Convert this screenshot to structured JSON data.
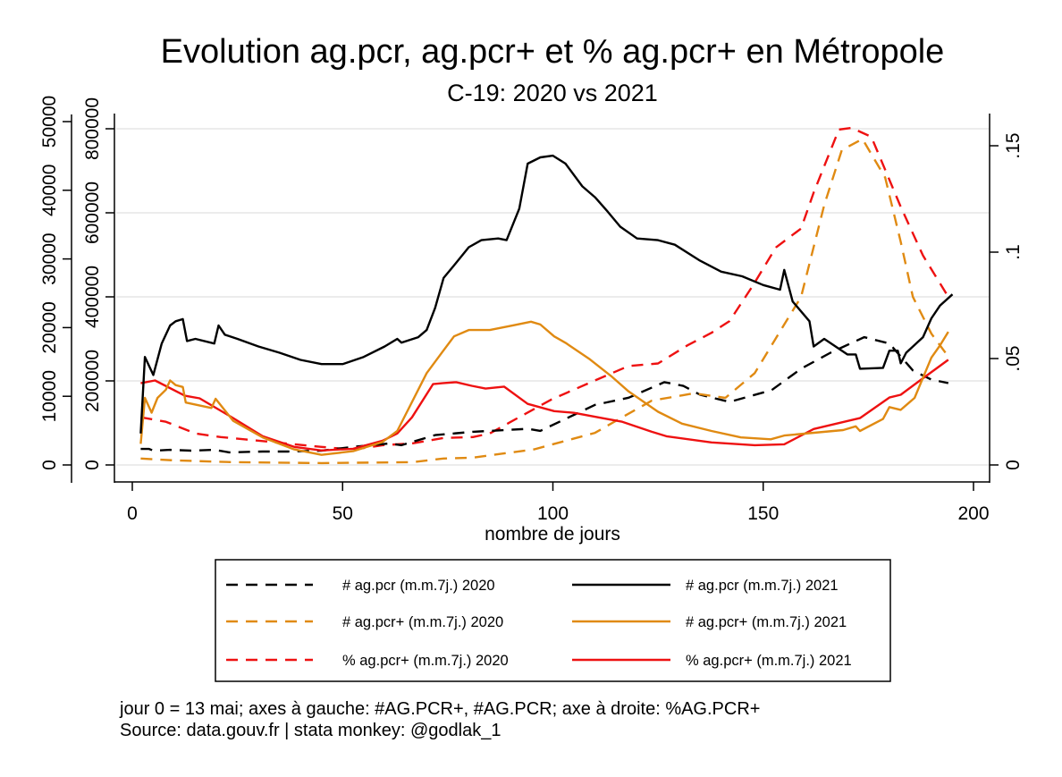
{
  "chart_data": {
    "type": "line",
    "title": "Evolution ag.pcr, ag.pcr+ et % ag.pcr+ en Métropole",
    "subtitle": "C-19: 2020 vs 2021",
    "xlabel": "nombre de jours",
    "xlim": [
      0,
      200
    ],
    "xticks": [
      "0",
      "50",
      "100",
      "150",
      "200"
    ],
    "axes": {
      "left_outer": {
        "label_for": "ag.pcr+",
        "range": [
          0,
          50000
        ],
        "ticks": [
          "0",
          "10000",
          "20000",
          "30000",
          "40000",
          "50000"
        ]
      },
      "left_inner": {
        "label_for": "ag.pcr",
        "range": [
          0,
          800000
        ],
        "ticks": [
          "0",
          "200000",
          "400000",
          "600000",
          "800000"
        ]
      },
      "right": {
        "label_for": "% ag.pcr+",
        "range": [
          0,
          0.15
        ],
        "ticks": [
          "0",
          ".05",
          ".1",
          ".15"
        ]
      }
    },
    "grid": true,
    "legend_position": "bottom",
    "series": [
      {
        "name": "# ag.pcr (m.m.7j.) 2020",
        "axis": "left_inner",
        "color": "#000000",
        "dash": true,
        "points": [
          [
            2,
            38000
          ],
          [
            4,
            38000
          ],
          [
            5,
            34000
          ],
          [
            9,
            36000
          ],
          [
            14,
            34000
          ],
          [
            19.5,
            36000
          ],
          [
            23,
            30000
          ],
          [
            31,
            32000
          ],
          [
            37,
            32000
          ],
          [
            45,
            34000
          ],
          [
            52.5,
            43000
          ],
          [
            61,
            51000
          ],
          [
            64,
            47000
          ],
          [
            72,
            71000
          ],
          [
            81,
            79000
          ],
          [
            85,
            81000
          ],
          [
            94,
            86000
          ],
          [
            97,
            81000
          ],
          [
            110,
            143000
          ],
          [
            118,
            160000
          ],
          [
            126.5,
            197000
          ],
          [
            131,
            188000
          ],
          [
            135,
            167000
          ],
          [
            142,
            150000
          ],
          [
            152,
            178000
          ],
          [
            159,
            229000
          ],
          [
            166,
            267000
          ],
          [
            174,
            304000
          ],
          [
            180,
            289000
          ],
          [
            185.6,
            225000
          ],
          [
            190,
            203000
          ],
          [
            194,
            195000
          ]
        ]
      },
      {
        "name": "# ag.pcr (m.m.7j.) 2021",
        "axis": "left_inner",
        "color": "#000000",
        "dash": false,
        "points": [
          [
            2,
            75000
          ],
          [
            3,
            257000
          ],
          [
            5,
            214000
          ],
          [
            7,
            289000
          ],
          [
            9,
            332000
          ],
          [
            10.3,
            342000
          ],
          [
            12,
            347000
          ],
          [
            13,
            295000
          ],
          [
            15,
            300000
          ],
          [
            19.5,
            289000
          ],
          [
            20.5,
            332000
          ],
          [
            22,
            310000
          ],
          [
            25,
            300000
          ],
          [
            30,
            282000
          ],
          [
            35,
            267000
          ],
          [
            40,
            250000
          ],
          [
            45,
            240000
          ],
          [
            50,
            240000
          ],
          [
            55,
            257000
          ],
          [
            60,
            282000
          ],
          [
            63,
            300000
          ],
          [
            64,
            291000
          ],
          [
            68,
            304000
          ],
          [
            70,
            321000
          ],
          [
            72,
            374000
          ],
          [
            74,
            445000
          ],
          [
            77,
            481000
          ],
          [
            80,
            518000
          ],
          [
            83,
            535000
          ],
          [
            87,
            539000
          ],
          [
            89,
            535000
          ],
          [
            92,
            610000
          ],
          [
            94,
            717000
          ],
          [
            97,
            732000
          ],
          [
            100,
            736000
          ],
          [
            103,
            717000
          ],
          [
            107,
            663000
          ],
          [
            110,
            637000
          ],
          [
            113,
            603000
          ],
          [
            116,
            567000
          ],
          [
            120,
            539000
          ],
          [
            125,
            535000
          ],
          [
            129,
            524000
          ],
          [
            135,
            486000
          ],
          [
            140,
            460000
          ],
          [
            145,
            449000
          ],
          [
            150,
            428000
          ],
          [
            154,
            417000
          ],
          [
            155,
            464000
          ],
          [
            157,
            389000
          ],
          [
            161,
            342000
          ],
          [
            162,
            282000
          ],
          [
            164.5,
            300000
          ],
          [
            170,
            263000
          ],
          [
            172,
            263000
          ],
          [
            173,
            229000
          ],
          [
            178.5,
            231000
          ],
          [
            180,
            272000
          ],
          [
            182,
            272000
          ],
          [
            182.7,
            242000
          ],
          [
            184,
            267000
          ],
          [
            188,
            304000
          ],
          [
            190,
            349000
          ],
          [
            192,
            379000
          ],
          [
            195,
            406000
          ]
        ]
      },
      {
        "name": "# ag.pcr+ (m.m.7j.) 2020",
        "axis": "left_outer",
        "color": "#E08A12",
        "dash": true,
        "points": [
          [
            2,
            940
          ],
          [
            10,
            670
          ],
          [
            24,
            400
          ],
          [
            45,
            270
          ],
          [
            66.5,
            400
          ],
          [
            74,
            940
          ],
          [
            81,
            1070
          ],
          [
            95.5,
            2270
          ],
          [
            110,
            4680
          ],
          [
            116.5,
            6950
          ],
          [
            123.5,
            9360
          ],
          [
            133.5,
            10430
          ],
          [
            141,
            9760
          ],
          [
            148,
            13370
          ],
          [
            155,
            20460
          ],
          [
            159,
            24470
          ],
          [
            164.5,
            37840
          ],
          [
            168.7,
            45860
          ],
          [
            173.6,
            47460
          ],
          [
            179,
            41850
          ],
          [
            182.7,
            32490
          ],
          [
            185.6,
            24470
          ],
          [
            190,
            19120
          ],
          [
            194,
            15780
          ]
        ]
      },
      {
        "name": "# ag.pcr+ (m.m.7j.) 2021",
        "axis": "left_outer",
        "color": "#E08A12",
        "dash": false,
        "points": [
          [
            2,
            3075
          ],
          [
            3,
            9760
          ],
          [
            4.6,
            7620
          ],
          [
            6,
            9760
          ],
          [
            8,
            10960
          ],
          [
            9,
            12300
          ],
          [
            10.3,
            11630
          ],
          [
            12,
            11360
          ],
          [
            12.7,
            9090
          ],
          [
            18.8,
            8290
          ],
          [
            19.8,
            9630
          ],
          [
            24,
            6420
          ],
          [
            31,
            4010
          ],
          [
            38.5,
            2270
          ],
          [
            45,
            1470
          ],
          [
            52.5,
            2000
          ],
          [
            59.5,
            3340
          ],
          [
            63,
            4950
          ],
          [
            70,
            13370
          ],
          [
            73.7,
            16450
          ],
          [
            76.5,
            18720
          ],
          [
            80,
            19650
          ],
          [
            85,
            19650
          ],
          [
            90.5,
            20320
          ],
          [
            94.8,
            20860
          ],
          [
            97,
            20460
          ],
          [
            100.3,
            18720
          ],
          [
            103,
            17780
          ],
          [
            108.8,
            15380
          ],
          [
            113.8,
            12970
          ],
          [
            118,
            10700
          ],
          [
            125,
            7750
          ],
          [
            130.7,
            6020
          ],
          [
            137.7,
            4950
          ],
          [
            144.7,
            4010
          ],
          [
            151.8,
            3740
          ],
          [
            155,
            4280
          ],
          [
            169,
            5080
          ],
          [
            172,
            5620
          ],
          [
            173,
            4950
          ],
          [
            178.5,
            6690
          ],
          [
            180,
            8420
          ],
          [
            182.7,
            8020
          ],
          [
            186,
            9760
          ],
          [
            190,
            15640
          ],
          [
            192,
            17380
          ],
          [
            194,
            19390
          ]
        ]
      },
      {
        "name": "% ag.pcr+ (m.m.7j.) 2020",
        "axis": "right",
        "color": "#EE1111",
        "dash": true,
        "points": [
          [
            2,
            0.0224
          ],
          [
            8,
            0.0203
          ],
          [
            15,
            0.0148
          ],
          [
            21,
            0.0131
          ],
          [
            28,
            0.0118
          ],
          [
            38.5,
            0.0097
          ],
          [
            45,
            0.0085
          ],
          [
            52.5,
            0.0072
          ],
          [
            59.5,
            0.0093
          ],
          [
            66.5,
            0.0101
          ],
          [
            74,
            0.0127
          ],
          [
            81,
            0.0131
          ],
          [
            85,
            0.0148
          ],
          [
            90,
            0.0203
          ],
          [
            99.7,
            0.0308
          ],
          [
            108,
            0.038
          ],
          [
            118,
            0.0465
          ],
          [
            125,
            0.0477
          ],
          [
            132,
            0.0562
          ],
          [
            137.7,
            0.0621
          ],
          [
            142,
            0.0676
          ],
          [
            147.6,
            0.0845
          ],
          [
            153,
            0.1022
          ],
          [
            159,
            0.1111
          ],
          [
            162,
            0.128
          ],
          [
            168,
            0.1576
          ],
          [
            171,
            0.1584
          ],
          [
            175.7,
            0.1542
          ],
          [
            182.7,
            0.1213
          ],
          [
            188,
            0.0984
          ],
          [
            194,
            0.079
          ]
        ]
      },
      {
        "name": "% ag.pcr+ (m.m.7j.) 2021",
        "axis": "right",
        "color": "#EE1111",
        "dash": false,
        "points": [
          [
            2,
            0.0384
          ],
          [
            5.4,
            0.0397
          ],
          [
            12.5,
            0.0325
          ],
          [
            16,
            0.0313
          ],
          [
            24,
            0.022
          ],
          [
            31,
            0.0135
          ],
          [
            38.5,
            0.0085
          ],
          [
            45,
            0.0068
          ],
          [
            52.5,
            0.0076
          ],
          [
            59.5,
            0.0114
          ],
          [
            63,
            0.0148
          ],
          [
            66.5,
            0.0224
          ],
          [
            71.5,
            0.038
          ],
          [
            73.7,
            0.0384
          ],
          [
            77,
            0.0389
          ],
          [
            80.7,
            0.0372
          ],
          [
            84,
            0.0359
          ],
          [
            88.4,
            0.0368
          ],
          [
            94,
            0.0287
          ],
          [
            100.3,
            0.0253
          ],
          [
            105,
            0.0245
          ],
          [
            111.7,
            0.022
          ],
          [
            116.5,
            0.0203
          ],
          [
            123.5,
            0.0156
          ],
          [
            127,
            0.0135
          ],
          [
            137.7,
            0.0106
          ],
          [
            148,
            0.0093
          ],
          [
            155,
            0.0097
          ],
          [
            162,
            0.0169
          ],
          [
            173,
            0.022
          ],
          [
            180,
            0.0317
          ],
          [
            182.7,
            0.033
          ],
          [
            187,
            0.0393
          ],
          [
            194,
            0.0494
          ]
        ]
      }
    ],
    "notes": [
      "jour 0 = 13 mai; axes à gauche: #AG.PCR+, #AG.PCR; axe à droite: %AG.PCR+",
      "Source: data.gouv.fr | stata monkey: @godlak_1"
    ]
  }
}
